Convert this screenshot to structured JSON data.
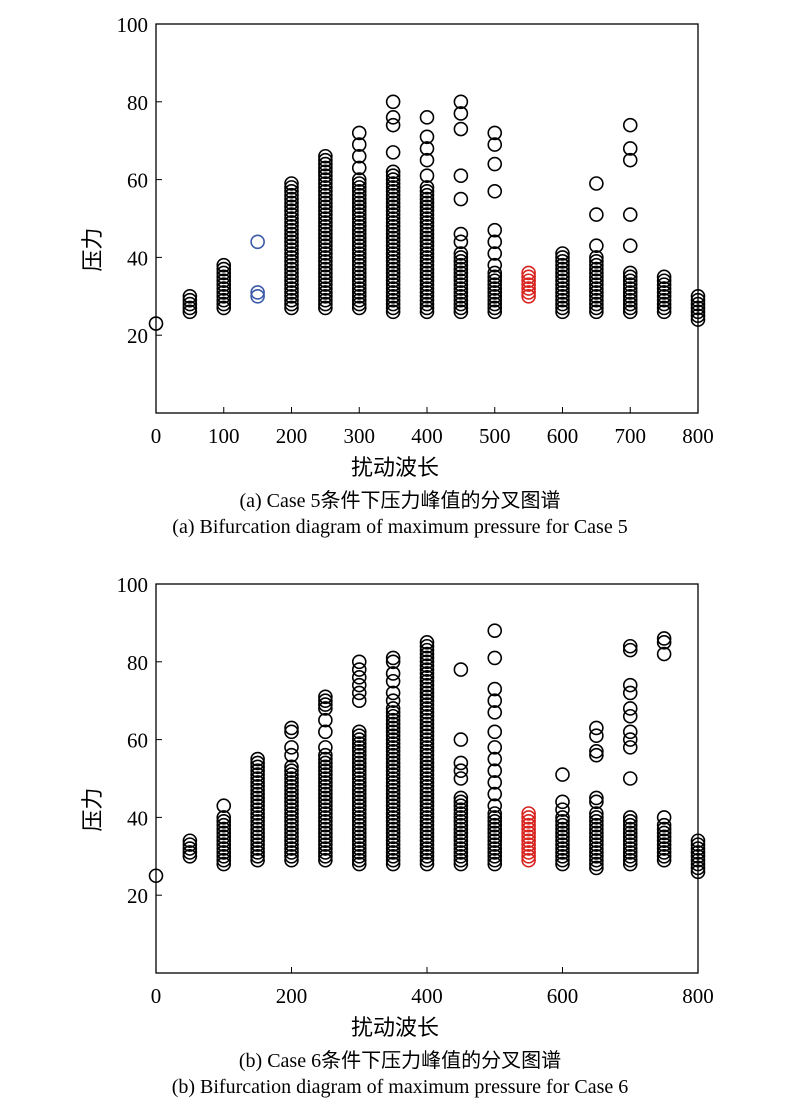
{
  "colors": {
    "default": "#000000",
    "blue": "#3b5aa8",
    "red": "#d8231f"
  },
  "chart_data": [
    {
      "type": "scatter",
      "title": "",
      "xlabel": "扰动波长",
      "ylabel": "压力",
      "xlim": [
        0,
        800
      ],
      "ylim": [
        0,
        100
      ],
      "xticks": [
        0,
        100,
        200,
        300,
        400,
        500,
        600,
        700,
        800
      ],
      "yticks": [
        20,
        40,
        60,
        80,
        100
      ],
      "grid": false,
      "captions": [
        "(a) Case 5条件下压力峰值的分叉图谱",
        "(a) Bifurcation diagram of maximum pressure for Case 5"
      ],
      "points": [
        {
          "x": 0,
          "y": [
            23
          ],
          "color": "default"
        },
        {
          "x": 50,
          "y": [
            26,
            27,
            28,
            29,
            30
          ],
          "color": "default"
        },
        {
          "x": 100,
          "y": [
            27,
            28,
            29,
            30,
            31,
            32,
            33,
            34,
            35,
            36,
            37,
            38
          ],
          "color": "default"
        },
        {
          "x": 150,
          "y": [
            30,
            31,
            44
          ],
          "color": "blue"
        },
        {
          "x": 200,
          "y": [
            27,
            28,
            29,
            30,
            31,
            32,
            33,
            34,
            35,
            36,
            37,
            38,
            39,
            40,
            41,
            42,
            43,
            44,
            45,
            46,
            47,
            48,
            49,
            50,
            51,
            52,
            53,
            54,
            55,
            56,
            57,
            58,
            59
          ],
          "color": "default"
        },
        {
          "x": 250,
          "y": [
            27,
            28,
            29,
            30,
            31,
            32,
            33,
            34,
            35,
            36,
            37,
            38,
            39,
            40,
            41,
            42,
            43,
            44,
            45,
            46,
            47,
            48,
            49,
            50,
            51,
            52,
            53,
            54,
            55,
            56,
            57,
            58,
            59,
            60,
            61,
            62,
            63,
            64,
            65,
            66
          ],
          "color": "default"
        },
        {
          "x": 300,
          "y": [
            27,
            28,
            29,
            30,
            31,
            32,
            33,
            34,
            35,
            36,
            37,
            38,
            39,
            40,
            41,
            42,
            43,
            44,
            45,
            46,
            47,
            48,
            49,
            50,
            51,
            52,
            53,
            54,
            55,
            56,
            57,
            58,
            59,
            60,
            63,
            66,
            69,
            72
          ],
          "color": "default"
        },
        {
          "x": 350,
          "y": [
            26,
            27,
            28,
            29,
            30,
            31,
            32,
            33,
            34,
            35,
            36,
            37,
            38,
            39,
            40,
            41,
            42,
            43,
            44,
            45,
            46,
            47,
            48,
            49,
            50,
            51,
            52,
            53,
            54,
            55,
            56,
            57,
            58,
            59,
            60,
            61,
            62,
            67,
            74,
            76,
            80
          ],
          "color": "default"
        },
        {
          "x": 400,
          "y": [
            26,
            27,
            28,
            29,
            30,
            31,
            32,
            33,
            34,
            35,
            36,
            37,
            38,
            39,
            40,
            41,
            42,
            43,
            44,
            45,
            46,
            47,
            48,
            49,
            50,
            51,
            52,
            53,
            54,
            55,
            56,
            57,
            58,
            61,
            65,
            68,
            71,
            76
          ],
          "color": "default"
        },
        {
          "x": 450,
          "y": [
            26,
            27,
            28,
            29,
            30,
            31,
            32,
            33,
            34,
            35,
            36,
            37,
            38,
            39,
            40,
            41,
            44,
            46,
            55,
            61,
            73,
            77,
            80
          ],
          "color": "default"
        },
        {
          "x": 500,
          "y": [
            26,
            27,
            28,
            29,
            30,
            31,
            32,
            33,
            34,
            35,
            36,
            38,
            41,
            44,
            47,
            57,
            64,
            69,
            72
          ],
          "color": "default"
        },
        {
          "x": 550,
          "y": [
            30,
            31,
            32,
            33,
            34,
            35,
            36
          ],
          "color": "red"
        },
        {
          "x": 600,
          "y": [
            26,
            27,
            28,
            29,
            30,
            31,
            32,
            33,
            34,
            35,
            36,
            37,
            38,
            39,
            40,
            41
          ],
          "color": "default"
        },
        {
          "x": 650,
          "y": [
            26,
            27,
            28,
            29,
            30,
            31,
            32,
            33,
            34,
            35,
            36,
            37,
            38,
            39,
            40,
            43,
            51,
            59
          ],
          "color": "default"
        },
        {
          "x": 700,
          "y": [
            26,
            27,
            28,
            29,
            30,
            31,
            32,
            33,
            34,
            35,
            36,
            43,
            51,
            65,
            68,
            74
          ],
          "color": "default"
        },
        {
          "x": 750,
          "y": [
            26,
            27,
            28,
            29,
            30,
            31,
            32,
            33,
            34,
            35
          ],
          "color": "default"
        },
        {
          "x": 800,
          "y": [
            24,
            25,
            26,
            27,
            28,
            29,
            30
          ],
          "color": "default"
        }
      ]
    },
    {
      "type": "scatter",
      "title": "",
      "xlabel": "扰动波长",
      "ylabel": "压力",
      "xlim": [
        0,
        800
      ],
      "ylim": [
        0,
        100
      ],
      "xticks": [
        0,
        200,
        400,
        600,
        800
      ],
      "yticks": [
        20,
        40,
        60,
        80,
        100
      ],
      "grid": false,
      "captions": [
        "(b) Case 6条件下压力峰值的分叉图谱",
        "(b) Bifurcation diagram of maximum pressure for Case 6"
      ],
      "points": [
        {
          "x": 0,
          "y": [
            25
          ],
          "color": "default"
        },
        {
          "x": 50,
          "y": [
            30,
            31,
            32,
            33,
            34
          ],
          "color": "default"
        },
        {
          "x": 100,
          "y": [
            28,
            29,
            30,
            31,
            32,
            33,
            34,
            35,
            36,
            37,
            38,
            39,
            40,
            43
          ],
          "color": "default"
        },
        {
          "x": 150,
          "y": [
            29,
            30,
            31,
            32,
            33,
            34,
            35,
            36,
            37,
            38,
            39,
            40,
            41,
            42,
            43,
            44,
            45,
            46,
            47,
            48,
            49,
            50,
            51,
            52,
            53,
            54,
            55
          ],
          "color": "default"
        },
        {
          "x": 200,
          "y": [
            29,
            30,
            31,
            32,
            33,
            34,
            35,
            36,
            37,
            38,
            39,
            40,
            41,
            42,
            43,
            44,
            45,
            46,
            47,
            48,
            49,
            50,
            51,
            52,
            53,
            56,
            58,
            62,
            63
          ],
          "color": "default"
        },
        {
          "x": 250,
          "y": [
            29,
            30,
            31,
            32,
            33,
            34,
            35,
            36,
            37,
            38,
            39,
            40,
            41,
            42,
            43,
            44,
            45,
            46,
            47,
            48,
            49,
            50,
            51,
            52,
            53,
            54,
            55,
            56,
            58,
            62,
            65,
            68,
            69,
            70,
            71
          ],
          "color": "default"
        },
        {
          "x": 300,
          "y": [
            28,
            29,
            30,
            31,
            32,
            33,
            34,
            35,
            36,
            37,
            38,
            39,
            40,
            41,
            42,
            43,
            44,
            45,
            46,
            47,
            48,
            49,
            50,
            51,
            52,
            53,
            54,
            55,
            56,
            57,
            58,
            59,
            60,
            61,
            62,
            70,
            72,
            74,
            76,
            78,
            80
          ],
          "color": "default"
        },
        {
          "x": 350,
          "y": [
            28,
            29,
            30,
            31,
            32,
            33,
            34,
            35,
            36,
            37,
            38,
            39,
            40,
            41,
            42,
            43,
            44,
            45,
            46,
            47,
            48,
            49,
            50,
            51,
            52,
            53,
            54,
            55,
            56,
            57,
            58,
            59,
            60,
            61,
            62,
            63,
            64,
            65,
            66,
            67,
            68,
            70,
            72,
            75,
            77,
            80,
            81
          ],
          "color": "default"
        },
        {
          "x": 400,
          "y": [
            28,
            29,
            30,
            31,
            32,
            33,
            34,
            35,
            36,
            37,
            38,
            39,
            40,
            41,
            42,
            43,
            44,
            45,
            46,
            47,
            48,
            49,
            50,
            51,
            52,
            53,
            54,
            55,
            56,
            57,
            58,
            59,
            60,
            61,
            62,
            63,
            64,
            65,
            66,
            67,
            68,
            69,
            70,
            71,
            72,
            73,
            74,
            75,
            76,
            77,
            78,
            79,
            80,
            81,
            82,
            83,
            84,
            85
          ],
          "color": "default"
        },
        {
          "x": 450,
          "y": [
            28,
            29,
            30,
            31,
            32,
            33,
            34,
            35,
            36,
            37,
            38,
            39,
            40,
            41,
            42,
            43,
            44,
            45,
            50,
            52,
            54,
            60,
            78
          ],
          "color": "default"
        },
        {
          "x": 500,
          "y": [
            28,
            29,
            30,
            31,
            32,
            33,
            34,
            35,
            36,
            37,
            38,
            39,
            40,
            41,
            43,
            46,
            49,
            52,
            55,
            58,
            62,
            67,
            70,
            73,
            81,
            88
          ],
          "color": "default"
        },
        {
          "x": 550,
          "y": [
            29,
            30,
            31,
            32,
            33,
            34,
            35,
            36,
            37,
            38,
            39,
            40,
            41
          ],
          "color": "red"
        },
        {
          "x": 600,
          "y": [
            28,
            29,
            30,
            31,
            32,
            33,
            34,
            35,
            36,
            37,
            38,
            39,
            40,
            42,
            44,
            51
          ],
          "color": "default"
        },
        {
          "x": 650,
          "y": [
            27,
            28,
            29,
            30,
            31,
            32,
            33,
            34,
            35,
            36,
            37,
            38,
            39,
            40,
            41,
            44,
            45,
            56,
            57,
            61,
            63
          ],
          "color": "default"
        },
        {
          "x": 700,
          "y": [
            28,
            29,
            30,
            31,
            32,
            33,
            34,
            35,
            36,
            37,
            38,
            39,
            40,
            50,
            58,
            60,
            62,
            66,
            68,
            72,
            74,
            83,
            84
          ],
          "color": "default"
        },
        {
          "x": 750,
          "y": [
            29,
            30,
            31,
            32,
            33,
            34,
            35,
            36,
            37,
            38,
            40,
            82,
            85,
            86
          ],
          "color": "default"
        },
        {
          "x": 800,
          "y": [
            26,
            27,
            28,
            29,
            30,
            31,
            32,
            33,
            34
          ],
          "color": "default"
        }
      ]
    }
  ]
}
